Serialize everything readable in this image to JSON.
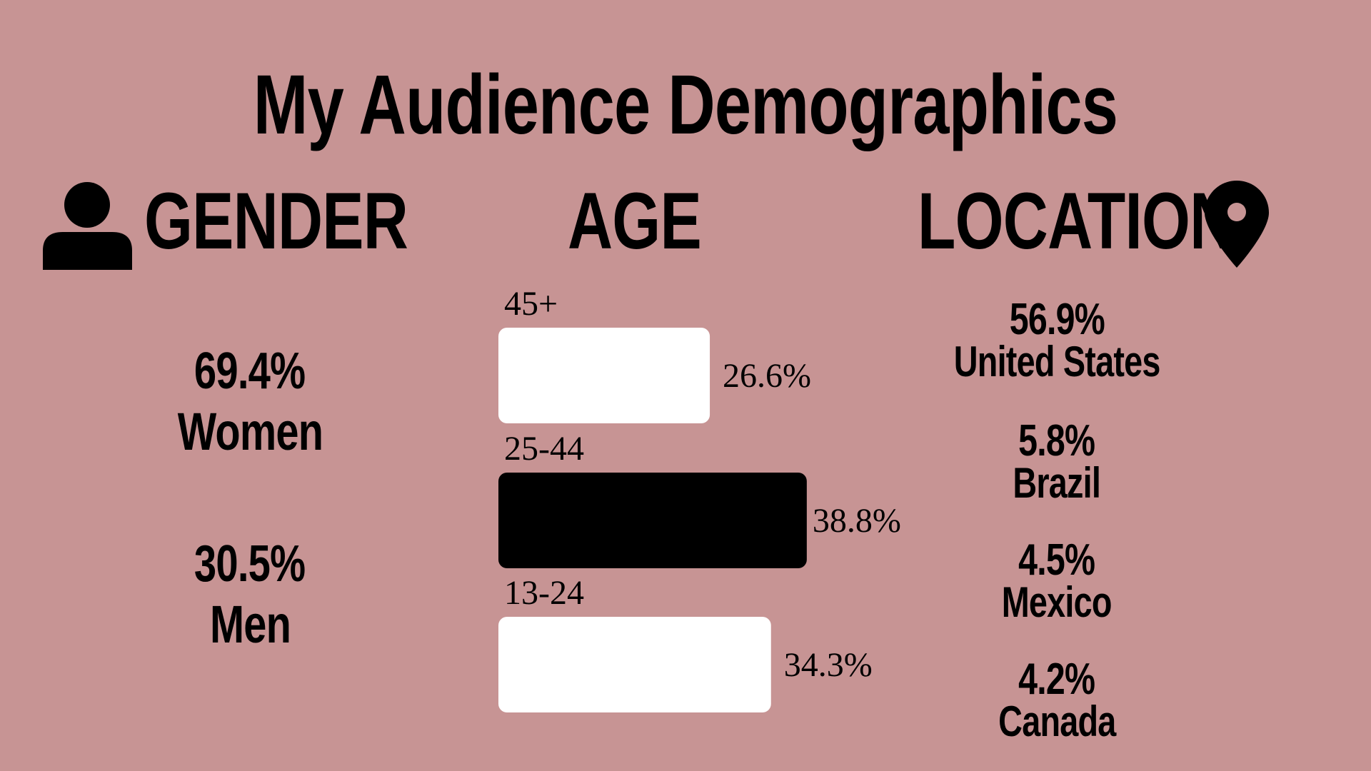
{
  "title": "My Audience Demographics",
  "colors": {
    "background": "#c79494",
    "text": "#000000",
    "bar_light": "#ffffff",
    "bar_dark": "#000000"
  },
  "gender": {
    "heading": "GENDER",
    "icon": "user-icon",
    "items": [
      {
        "pct": "69.4%",
        "name": "Women"
      },
      {
        "pct": "30.5%",
        "name": "Men"
      }
    ]
  },
  "age": {
    "heading": "AGE"
  },
  "location": {
    "heading": "LOCATION",
    "icon": "map-pin-icon",
    "items": [
      {
        "pct": "56.9%",
        "name": "United States"
      },
      {
        "pct": "5.8%",
        "name": "Brazil"
      },
      {
        "pct": "4.5%",
        "name": "Mexico"
      },
      {
        "pct": "4.2%",
        "name": "Canada"
      }
    ]
  },
  "chart_data": {
    "type": "bar",
    "orientation": "horizontal",
    "categories": [
      "45+",
      "25-44",
      "13-24"
    ],
    "values": [
      26.6,
      38.8,
      34.3
    ],
    "value_labels": [
      "26.6%",
      "38.8%",
      "34.3%"
    ],
    "bar_colors": [
      "#ffffff",
      "#000000",
      "#ffffff"
    ],
    "title": "AGE",
    "xlabel": "",
    "ylabel": "",
    "grid": false
  }
}
